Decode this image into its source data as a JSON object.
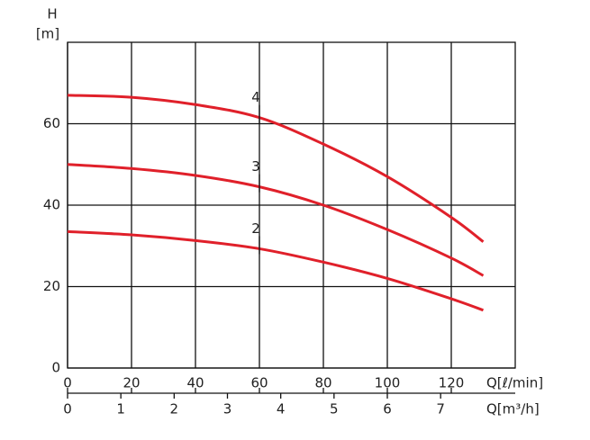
{
  "chart_data": {
    "type": "line",
    "ylabel": "H",
    "yunit": "[m]",
    "xlabel": "Q[ℓ/min]",
    "x2label": "Q[m³/h]",
    "x": [
      0,
      20,
      40,
      60,
      80,
      100,
      120,
      130
    ],
    "series": [
      {
        "name": "4",
        "color": "#e0202a",
        "values": [
          67,
          66.5,
          64.7,
          61.5,
          55,
          47,
          37,
          31
        ]
      },
      {
        "name": "3",
        "color": "#e0202a",
        "values": [
          50,
          49,
          47.3,
          44.5,
          40,
          34,
          27,
          22.7
        ]
      },
      {
        "name": "2",
        "color": "#e0202a",
        "values": [
          33.5,
          32.7,
          31.3,
          29.3,
          26,
          22,
          17,
          14.2
        ]
      }
    ],
    "xlim": [
      0,
      140
    ],
    "xticks": [
      0,
      20,
      40,
      60,
      80,
      100,
      120
    ],
    "x2lim": [
      0,
      8.4
    ],
    "x2ticks": [
      0,
      1,
      2,
      3,
      4,
      5,
      6,
      7
    ],
    "ylim": [
      0,
      80
    ],
    "yticks": [
      0,
      20,
      40,
      60
    ],
    "grid": true
  }
}
